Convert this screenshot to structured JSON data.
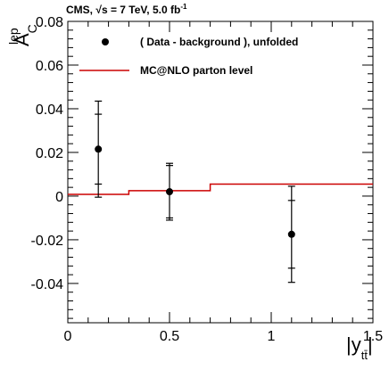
{
  "header": {
    "experiment": "CMS, ",
    "sqrt": "√",
    "energy": "s = 7 TeV, 5.0 fb",
    "lumi_exp": "-1"
  },
  "chart_data": {
    "type": "scatter",
    "title": "",
    "xlabel": {
      "main": "|y",
      "sub": "tt̄",
      "close": "|"
    },
    "ylabel": {
      "main": "A",
      "sub": "C",
      "sup": "lep"
    },
    "xlim": [
      0,
      1.5
    ],
    "ylim": [
      -0.058,
      0.08
    ],
    "grid": false,
    "legend_position": "top-left",
    "x_ticks": [
      {
        "value": 0,
        "label": "0"
      },
      {
        "value": 0.5,
        "label": "0.5"
      },
      {
        "value": 1,
        "label": "1"
      },
      {
        "value": 1.5,
        "label": "1.5"
      }
    ],
    "y_ticks": [
      {
        "value": -0.04,
        "label": "-0.04"
      },
      {
        "value": -0.02,
        "label": "-0.02"
      },
      {
        "value": 0,
        "label": "0"
      },
      {
        "value": 0.02,
        "label": "0.02"
      },
      {
        "value": 0.04,
        "label": "0.04"
      },
      {
        "value": 0.06,
        "label": "0.06"
      },
      {
        "value": 0.08,
        "label": "0.08"
      }
    ],
    "series": [
      {
        "name": "( Data - background ), unfolded",
        "kind": "points",
        "color": "#000000",
        "points": [
          {
            "x": 0.15,
            "y": 0.0215,
            "stat_err": 0.016,
            "tot_err": 0.022
          },
          {
            "x": 0.5,
            "y": 0.002,
            "stat_err": 0.012,
            "tot_err": 0.013
          },
          {
            "x": 1.1,
            "y": -0.0175,
            "stat_err": 0.0155,
            "tot_err": 0.022
          }
        ]
      },
      {
        "name": "MC@NLO parton level",
        "kind": "step",
        "color": "#cc0000",
        "bins": [
          {
            "x0": 0,
            "x1": 0.3,
            "y": 0.0008
          },
          {
            "x0": 0.3,
            "x1": 0.7,
            "y": 0.0025
          },
          {
            "x0": 0.7,
            "x1": 1.5,
            "y": 0.0055
          }
        ]
      }
    ]
  }
}
